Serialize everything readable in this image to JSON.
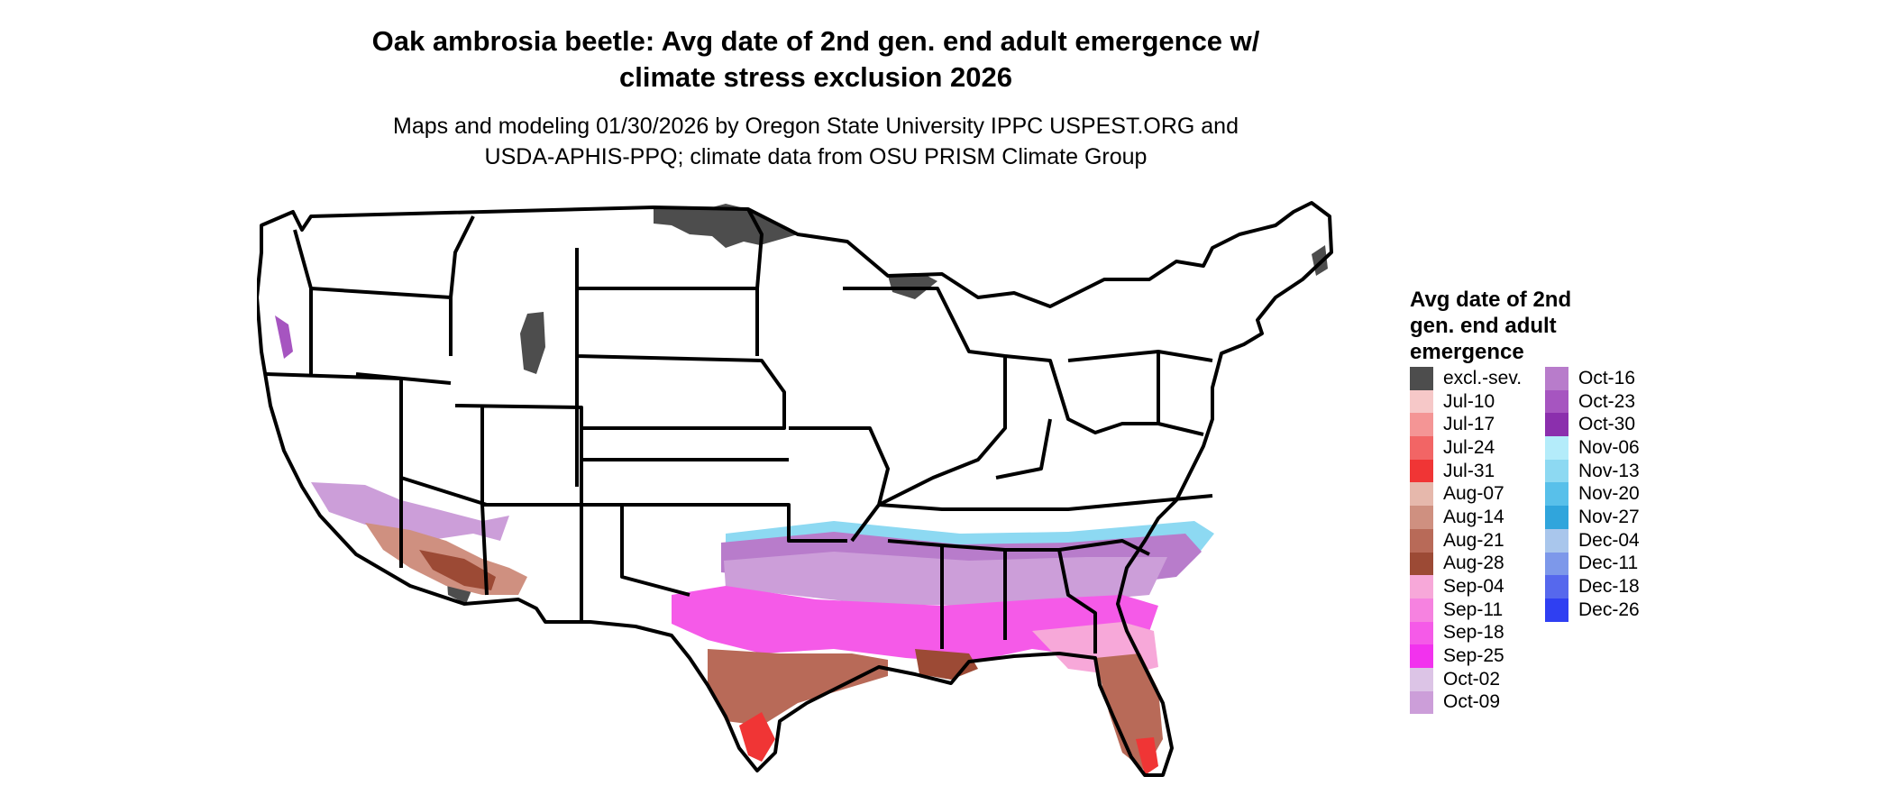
{
  "title_lines": [
    "Oak ambrosia beetle: Avg date of 2nd gen. end adult emergence w/",
    "climate stress exclusion 2026"
  ],
  "subtitle_lines": [
    "Maps and modeling 01/30/2026 by Oregon State University IPPC USPEST.ORG and",
    "USDA-APHIS-PPQ; climate data from OSU PRISM Climate Group"
  ],
  "legend": {
    "title_lines": [
      "Avg date of 2nd",
      "gen. end adult",
      "emergence"
    ],
    "column1": [
      {
        "label": "excl.-sev.",
        "color": "#4d4d4d"
      },
      {
        "label": "Jul-10",
        "color": "#f6c8c8"
      },
      {
        "label": "Jul-17",
        "color": "#f49595"
      },
      {
        "label": "Jul-24",
        "color": "#f26565"
      },
      {
        "label": "Jul-31",
        "color": "#f03535"
      },
      {
        "label": "Aug-07",
        "color": "#e6b8ac"
      },
      {
        "label": "Aug-14",
        "color": "#cf9080"
      },
      {
        "label": "Aug-21",
        "color": "#b86a58"
      },
      {
        "label": "Aug-28",
        "color": "#9c4a35"
      },
      {
        "label": "Sep-04",
        "color": "#f7a8d9"
      },
      {
        "label": "Sep-11",
        "color": "#f682e0"
      },
      {
        "label": "Sep-18",
        "color": "#f55ae8"
      },
      {
        "label": "Sep-25",
        "color": "#f232ee"
      },
      {
        "label": "Oct-02",
        "color": "#dcc4e6"
      },
      {
        "label": "Oct-09",
        "color": "#cc9ed9"
      }
    ],
    "column2": [
      {
        "label": "Oct-16",
        "color": "#b87ccb"
      },
      {
        "label": "Oct-23",
        "color": "#a655c0"
      },
      {
        "label": "Oct-30",
        "color": "#8b2fad"
      },
      {
        "label": "Nov-06",
        "color": "#b4ecfa"
      },
      {
        "label": "Nov-13",
        "color": "#8dd9f2"
      },
      {
        "label": "Nov-20",
        "color": "#58c0ea"
      },
      {
        "label": "Nov-27",
        "color": "#30a5dc"
      },
      {
        "label": "Dec-04",
        "color": "#a9c6ec"
      },
      {
        "label": "Dec-11",
        "color": "#7d98ea"
      },
      {
        "label": "Dec-18",
        "color": "#5668ed"
      },
      {
        "label": "Dec-26",
        "color": "#2f3ff2"
      }
    ]
  }
}
